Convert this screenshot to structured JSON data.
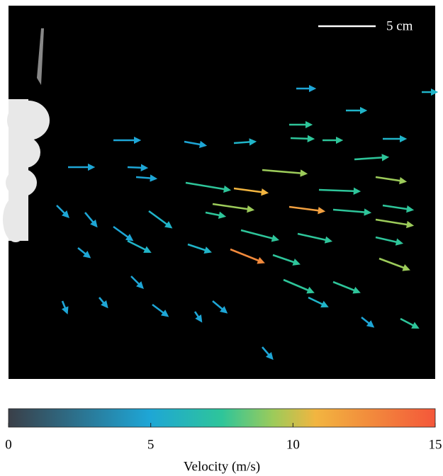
{
  "chart_data": {
    "type": "colorbar",
    "scale_label": "5 cm",
    "colorbar_label": "Velocity (m/s)",
    "clim": [
      0,
      15
    ],
    "ticks": [
      0,
      5,
      10,
      15
    ]
  }
}
